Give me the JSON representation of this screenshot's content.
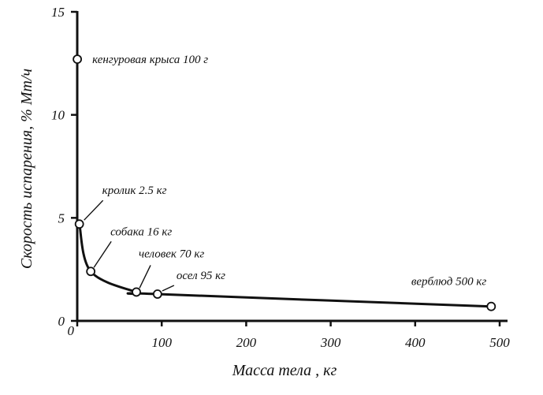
{
  "chart_data": {
    "type": "line",
    "title": "",
    "xlabel": "Масса тела , кг",
    "ylabel": "Скорость испарения,  % Мт/ч",
    "xlim": [
      0,
      500
    ],
    "ylim": [
      0,
      15
    ],
    "xticks": [
      0,
      100,
      200,
      300,
      400,
      500
    ],
    "yticks": [
      0,
      5,
      10,
      15
    ],
    "xtick_labels": [
      "0",
      "100",
      "200",
      "300",
      "400",
      "500"
    ],
    "ytick_labels": [
      "0",
      "5",
      "10",
      "15"
    ],
    "grid": false,
    "points": [
      {
        "label": "кенгуровая крыса  100 г",
        "x": 0.1,
        "y": 12.7
      },
      {
        "label": "кролик  2.5 кг",
        "x": 2.5,
        "y": 4.7
      },
      {
        "label": "собака  16 кг",
        "x": 16,
        "y": 2.4
      },
      {
        "label": "человек  70 кг",
        "x": 70,
        "y": 1.4
      },
      {
        "label": "осел  95 кг",
        "x": 95,
        "y": 1.3
      },
      {
        "label": "верблюд 500 кг",
        "x": 490,
        "y": 0.7
      }
    ],
    "curve": [
      [
        2.5,
        4.7
      ],
      [
        16,
        2.4
      ],
      [
        70,
        1.4
      ],
      [
        95,
        1.3
      ],
      [
        490,
        0.7
      ]
    ]
  }
}
